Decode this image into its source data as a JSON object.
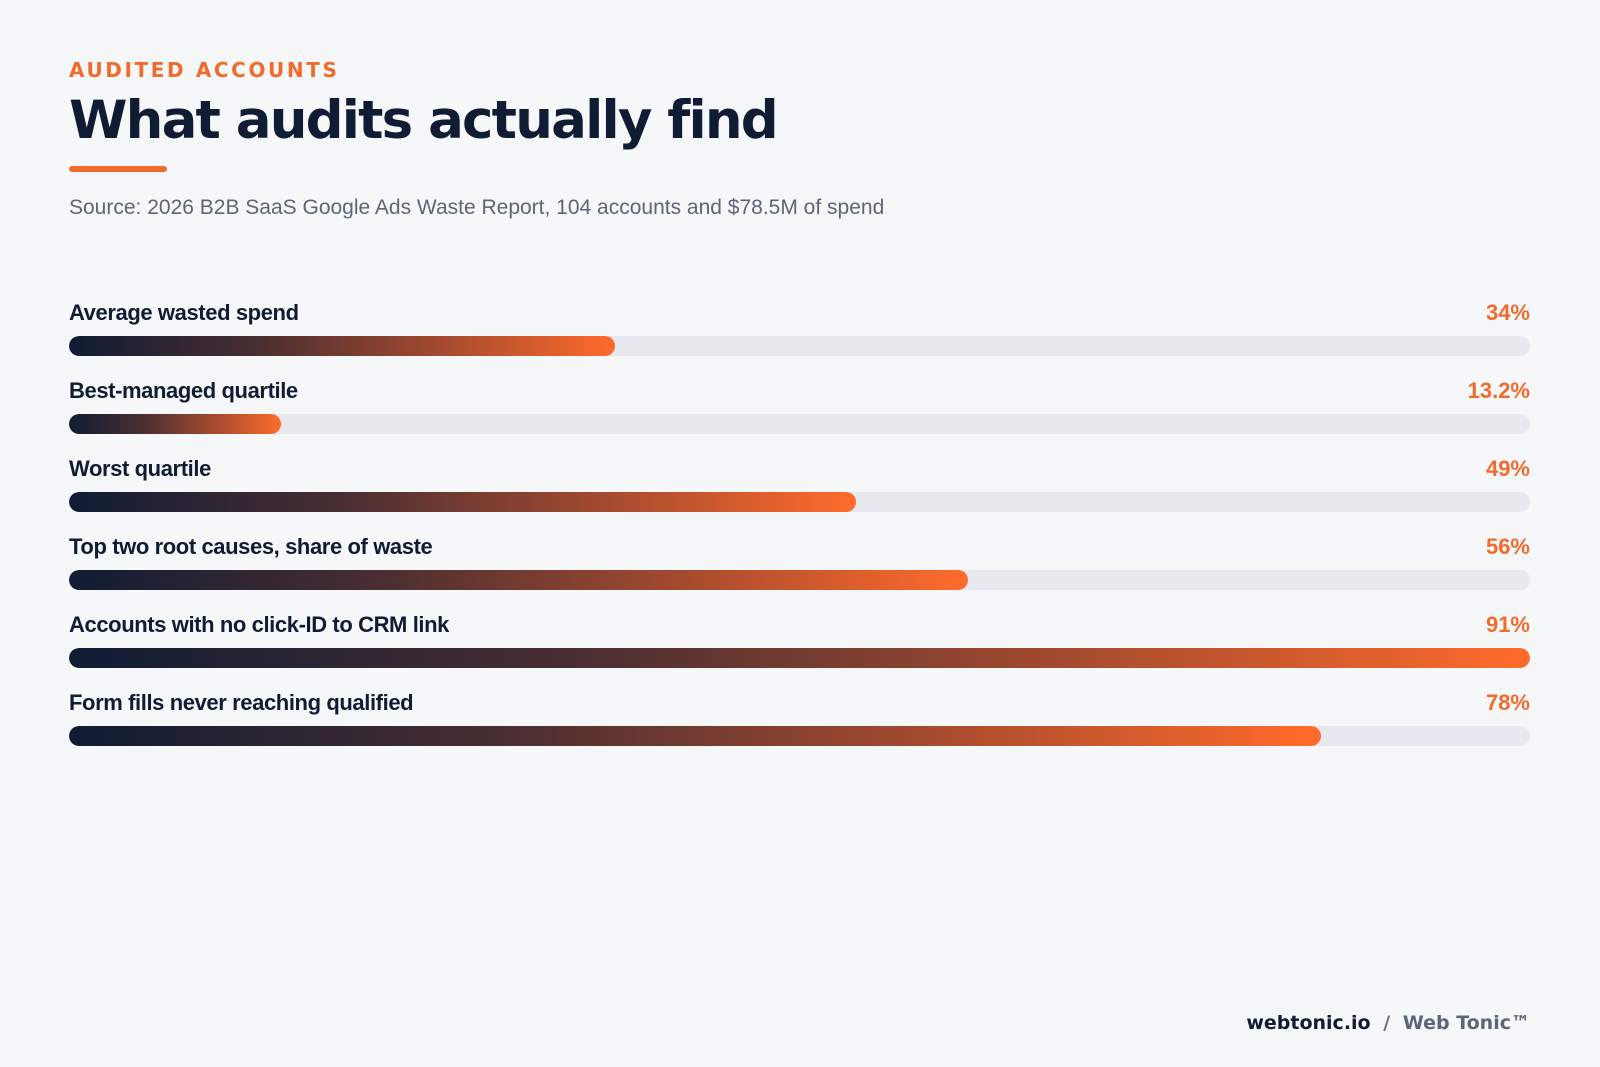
{
  "header": {
    "eyebrow": "AUDITED ACCOUNTS",
    "title": "What audits actually find",
    "source": "Source: 2026 B2B SaaS Google Ads Waste Report, 104 accounts and $78.5M of spend"
  },
  "colors": {
    "accent": "#f26b2c",
    "ink": "#101c33",
    "track": "#e7e9ee",
    "background": "#f6f7f9"
  },
  "chart_data": {
    "type": "bar",
    "orientation": "horizontal",
    "categories": [
      "Average wasted spend",
      "Best-managed quartile",
      "Worst quartile",
      "Top two root causes, share of waste",
      "Accounts with no click-ID to CRM link",
      "Form fills never reaching qualified"
    ],
    "values": [
      34,
      13.2,
      49,
      56,
      91,
      78
    ],
    "value_labels": [
      "34%",
      "13.2%",
      "49%",
      "56%",
      "91%",
      "78%"
    ],
    "xlim": [
      0,
      91
    ],
    "grid": false,
    "legend": "none"
  },
  "footer": {
    "site": "webtonic.io",
    "separator": "/",
    "brand": "Web Tonic™"
  }
}
